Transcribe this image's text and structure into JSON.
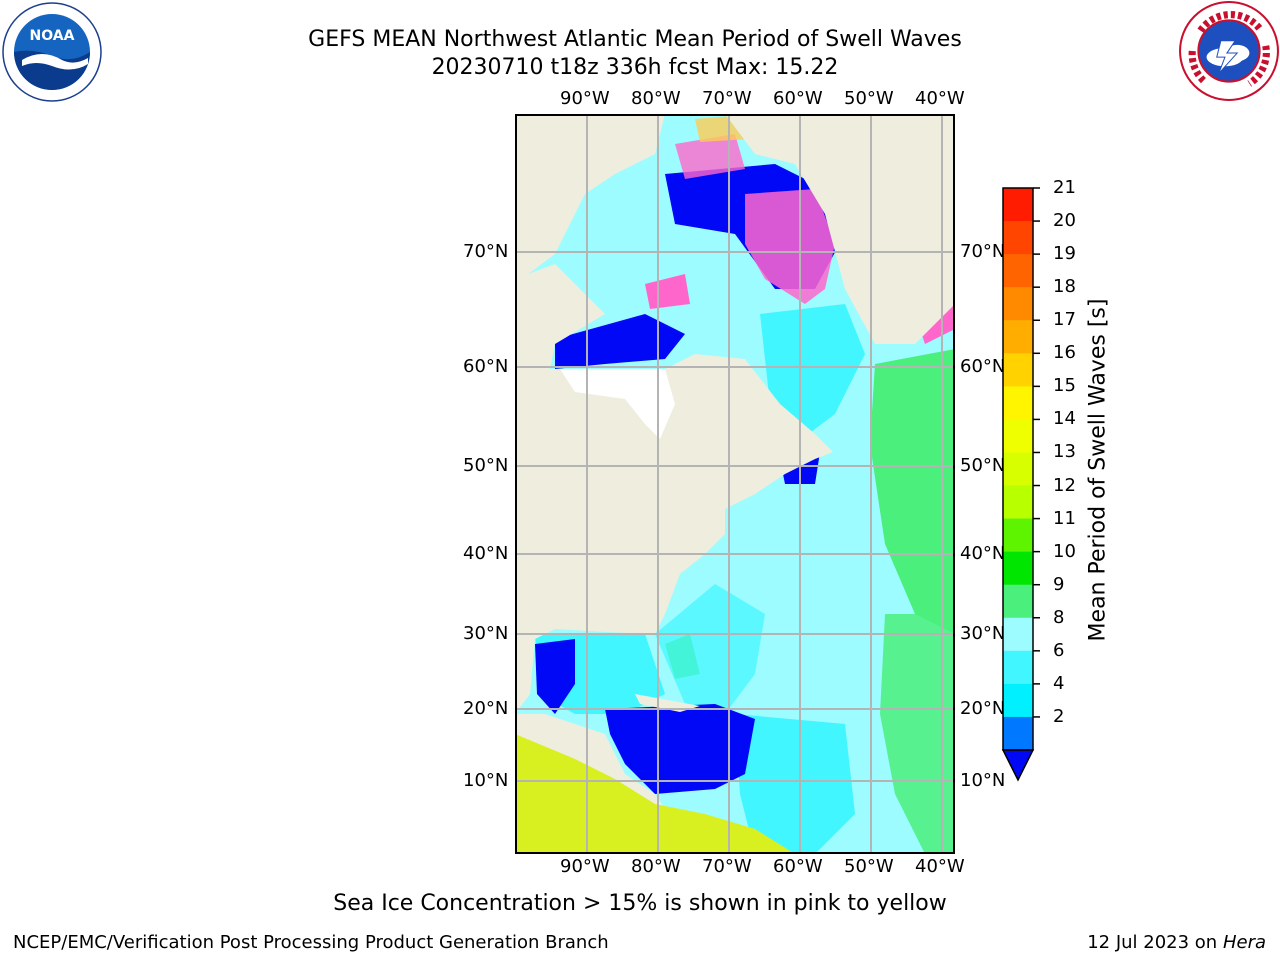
{
  "header": {
    "title_line1": "GEFS MEAN Northwest Atlantic Mean Period of Swell Waves",
    "title_line2": "20230710 t18z 336h fcst   Max: 15.22"
  },
  "logos": {
    "left": "NOAA",
    "right": "NATIONAL WEATHER SERVICE"
  },
  "map": {
    "lon_labels": [
      "90°W",
      "80°W",
      "70°W",
      "60°W",
      "50°W",
      "40°W"
    ],
    "lat_labels": [
      "70°N",
      "60°N",
      "50°N",
      "40°N",
      "30°N",
      "20°N",
      "10°N"
    ],
    "colors": {
      "land": "#efedde",
      "ocean_9_10": "#9cfcff",
      "ocean_6_8": "#42f6ff",
      "ocean_10_11": "#4bef7c",
      "ocean_2_4": "#0008f5",
      "ice_pink": "#ff66cc",
      "ice_yellow": "#ffcc55"
    }
  },
  "colorbar": {
    "title": "Mean Period of Swell Waves [s]",
    "labels": [
      "21",
      "20",
      "19",
      "18",
      "17",
      "16",
      "15",
      "14",
      "13",
      "12",
      "11",
      "10",
      "9",
      "8",
      "6",
      "4",
      "2"
    ],
    "colors": [
      "#ff1c00",
      "#ff4500",
      "#ff6400",
      "#ff8a00",
      "#ffae00",
      "#ffd200",
      "#fff500",
      "#f0ff00",
      "#d8ff00",
      "#b8ff00",
      "#5ef400",
      "#00e600",
      "#4bef7c",
      "#9cfcff",
      "#42f6ff",
      "#00f0ff",
      "#0078ff"
    ],
    "under_color": "#0008f5"
  },
  "footer": {
    "note": "Sea Ice Concentration > 15% is shown in pink to yellow",
    "credit": "NCEP/EMC/Verification Post Processing Product Generation Branch",
    "date": "12 Jul 2023 on ",
    "host": "Hera"
  }
}
